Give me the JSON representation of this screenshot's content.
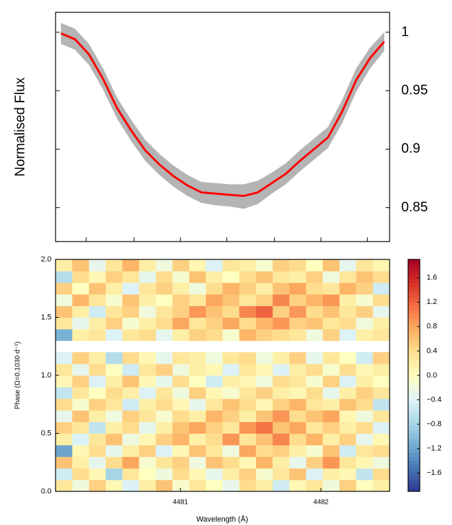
{
  "chart_data": [
    {
      "type": "line",
      "ylabel": "Normalised Flux",
      "x": [
        4480.15,
        4480.25,
        4480.35,
        4480.45,
        4480.55,
        4480.65,
        4480.75,
        4480.85,
        4480.95,
        4481.05,
        4481.15,
        4481.25,
        4481.35,
        4481.45,
        4481.55,
        4481.65,
        4481.75,
        4481.85,
        4481.95,
        4482.05,
        4482.15,
        4482.25,
        4482.35,
        4482.45
      ],
      "values": [
        0.999,
        0.994,
        0.981,
        0.96,
        0.935,
        0.916,
        0.899,
        0.887,
        0.877,
        0.869,
        0.863,
        0.862,
        0.861,
        0.86,
        0.863,
        0.871,
        0.879,
        0.89,
        0.9,
        0.91,
        0.932,
        0.959,
        0.978,
        0.992
      ],
      "lower": [
        0.99,
        0.985,
        0.972,
        0.951,
        0.926,
        0.907,
        0.89,
        0.878,
        0.868,
        0.86,
        0.854,
        0.852,
        0.851,
        0.849,
        0.853,
        0.862,
        0.87,
        0.881,
        0.891,
        0.901,
        0.922,
        0.949,
        0.969,
        0.984
      ],
      "upper": [
        1.008,
        1.003,
        0.99,
        0.969,
        0.944,
        0.925,
        0.908,
        0.896,
        0.886,
        0.878,
        0.872,
        0.871,
        0.87,
        0.87,
        0.873,
        0.88,
        0.888,
        0.899,
        0.909,
        0.919,
        0.942,
        0.969,
        0.987,
        1.0
      ],
      "color": "#ff0000",
      "band_color": "#b4b4b4",
      "xlim": [
        4480.112,
        4482.488
      ],
      "xticks": [
        4480.33,
        4480.67,
        4481,
        4481.33,
        4481.67,
        4482,
        4482.33
      ],
      "ylim": [
        0.821,
        1.017
      ],
      "yticks": [
        0.85,
        0.9,
        0.95,
        1
      ]
    },
    {
      "type": "heatmap",
      "xlabel": "Wavelength (Å)",
      "ylabel": "Phase (Ω=0.1030 d⁻¹)",
      "colormap": "RdYlBu_r",
      "clim": [
        -1.9,
        1.9
      ],
      "xlim": [
        4480.112,
        4482.488
      ],
      "xticks": [
        4481,
        4482
      ],
      "ylim": [
        0,
        2
      ],
      "yticks": [
        {
          "value": 0,
          "label": "0.0"
        },
        {
          "value": 0.5,
          "label": "0.5"
        },
        {
          "value": 1,
          "label": "1.0"
        },
        {
          "value": 1.5,
          "label": "1.5"
        },
        {
          "value": 2,
          "label": "2.0"
        }
      ],
      "cticks": [
        {
          "value": 1.6,
          "label": "1.6"
        },
        {
          "value": 1.2,
          "label": "1.2"
        },
        {
          "value": 0.8,
          "label": "0.8"
        },
        {
          "value": 0.4,
          "label": "0.4"
        },
        {
          "value": 0,
          "label": "0.0"
        },
        {
          "value": -0.4,
          "label": "−0.4"
        },
        {
          "value": -0.8,
          "label": "−0.8"
        },
        {
          "value": -1.2,
          "label": "−1.2"
        },
        {
          "value": -1.6,
          "label": "−1.6"
        }
      ],
      "z": [
        [
          0.3,
          -0.2,
          0.5,
          0.1,
          -0.4,
          0.2,
          0.6,
          -0.1,
          0.3,
          0.0,
          -0.3,
          0.4,
          0.2,
          -0.5,
          0.1,
          0.3,
          -0.2,
          0.5,
          0.0,
          0.2
        ],
        [
          -0.5,
          0.4,
          0.1,
          -0.8,
          0.3,
          0.0,
          -0.2,
          0.4,
          0.1,
          -0.3,
          0.2,
          0.5,
          -0.1,
          0.3,
          0.6,
          -0.4,
          0.2,
          0.1,
          -0.6,
          0.4
        ],
        [
          0.6,
          0.2,
          -0.3,
          0.4,
          0.8,
          -0.1,
          0.3,
          0.5,
          -0.2,
          0.6,
          0.4,
          0.1,
          0.7,
          0.2,
          -0.3,
          0.5,
          0.9,
          0.3,
          0.1,
          -0.2
        ],
        [
          -1.2,
          0.1,
          0.4,
          -0.3,
          0.2,
          0.5,
          -0.4,
          0.1,
          0.6,
          0.3,
          -0.2,
          0.8,
          0.4,
          0.5,
          0.2,
          -0.1,
          0.6,
          -0.5,
          0.3,
          0.4
        ],
        [
          0.2,
          -0.4,
          0.3,
          0.6,
          -0.2,
          0.1,
          0.5,
          0.7,
          0.2,
          0.4,
          0.9,
          0.3,
          0.6,
          1.0,
          0.4,
          0.7,
          0.2,
          0.5,
          -0.3,
          0.1
        ],
        [
          0.5,
          0.3,
          -0.6,
          0.2,
          0.4,
          -0.3,
          0.2,
          0.6,
          0.8,
          0.5,
          0.3,
          0.9,
          1.1,
          0.6,
          0.8,
          0.3,
          0.5,
          0.2,
          0.4,
          -0.4
        ],
        [
          -0.3,
          0.6,
          0.2,
          -0.2,
          0.5,
          0.3,
          -0.1,
          0.4,
          0.2,
          0.7,
          0.5,
          0.2,
          0.6,
          0.9,
          0.4,
          0.6,
          0.8,
          0.1,
          -0.2,
          0.3
        ],
        [
          0.4,
          -0.1,
          0.5,
          0.3,
          -0.5,
          0.2,
          0.4,
          0.1,
          -0.3,
          0.3,
          0.6,
          0.4,
          0.1,
          0.5,
          0.7,
          0.3,
          0.2,
          0.6,
          0.4,
          -0.6
        ],
        [
          -0.6,
          0.3,
          0.0,
          0.4,
          0.2,
          -0.4,
          0.3,
          -0.2,
          0.5,
          0.1,
          -0.1,
          0.3,
          0.5,
          0.2,
          0.1,
          0.4,
          -0.3,
          0.2,
          0.5,
          0.3
        ],
        [
          0.1,
          0.5,
          -0.4,
          0.2,
          0.6,
          0.1,
          -0.3,
          0.4,
          0.0,
          -0.5,
          0.2,
          0.1,
          -0.2,
          0.4,
          0.3,
          -0.1,
          0.5,
          -0.4,
          0.2,
          0.0
        ],
        [
          0.3,
          -0.3,
          0.4,
          0.0,
          -0.5,
          0.3,
          0.5,
          -0.2,
          0.2,
          0.1,
          -0.4,
          0.3,
          0.1,
          -0.4,
          0.2,
          0.4,
          -0.1,
          0.4,
          0.1,
          0.2
        ],
        [
          -0.4,
          0.5,
          0.2,
          -0.7,
          0.4,
          0.1,
          -0.3,
          0.3,
          0.2,
          -0.2,
          0.3,
          0.4,
          -0.2,
          0.2,
          0.5,
          -0.3,
          0.3,
          0.0,
          -0.5,
          0.5
        ],
        [
          null,
          null,
          null,
          null,
          null,
          null,
          null,
          null,
          null,
          null,
          null,
          null,
          null,
          null,
          null,
          null,
          null,
          null,
          null,
          null
        ],
        [
          -1.1,
          0.2,
          0.3,
          -0.4,
          0.3,
          0.4,
          -0.3,
          0.2,
          0.5,
          0.4,
          -0.1,
          0.7,
          0.5,
          0.4,
          0.3,
          -0.2,
          0.5,
          -0.4,
          0.2,
          0.3
        ],
        [
          0.3,
          -0.3,
          0.2,
          0.5,
          -0.1,
          0.2,
          0.4,
          0.8,
          0.3,
          0.5,
          0.8,
          0.4,
          0.7,
          0.9,
          0.5,
          0.6,
          0.3,
          0.4,
          -0.2,
          0.2
        ],
        [
          0.6,
          0.2,
          -0.5,
          0.3,
          0.5,
          -0.2,
          0.3,
          0.5,
          0.9,
          0.6,
          0.4,
          1.0,
          1.2,
          0.5,
          0.9,
          0.4,
          0.6,
          0.3,
          0.5,
          -0.3
        ],
        [
          -0.2,
          0.7,
          0.3,
          -0.1,
          0.6,
          0.2,
          0.0,
          0.5,
          0.3,
          0.8,
          0.6,
          0.3,
          0.5,
          1.0,
          0.5,
          0.7,
          0.9,
          0.2,
          -0.1,
          0.4
        ],
        [
          0.5,
          0.0,
          0.6,
          0.2,
          -0.4,
          0.3,
          0.5,
          0.2,
          -0.2,
          0.4,
          0.7,
          0.5,
          0.2,
          0.6,
          0.8,
          0.4,
          0.3,
          0.7,
          0.5,
          -0.5
        ],
        [
          -0.7,
          0.4,
          0.1,
          0.5,
          0.3,
          -0.3,
          0.4,
          -0.1,
          0.6,
          0.2,
          0.0,
          0.4,
          0.6,
          0.3,
          0.2,
          0.5,
          -0.2,
          0.3,
          0.6,
          0.4
        ],
        [
          0.2,
          0.6,
          -0.3,
          0.3,
          0.7,
          0.2,
          -0.2,
          0.5,
          0.1,
          -0.4,
          0.3,
          0.2,
          -0.1,
          0.5,
          0.4,
          0.0,
          0.6,
          -0.3,
          0.3,
          0.1
        ]
      ]
    }
  ]
}
